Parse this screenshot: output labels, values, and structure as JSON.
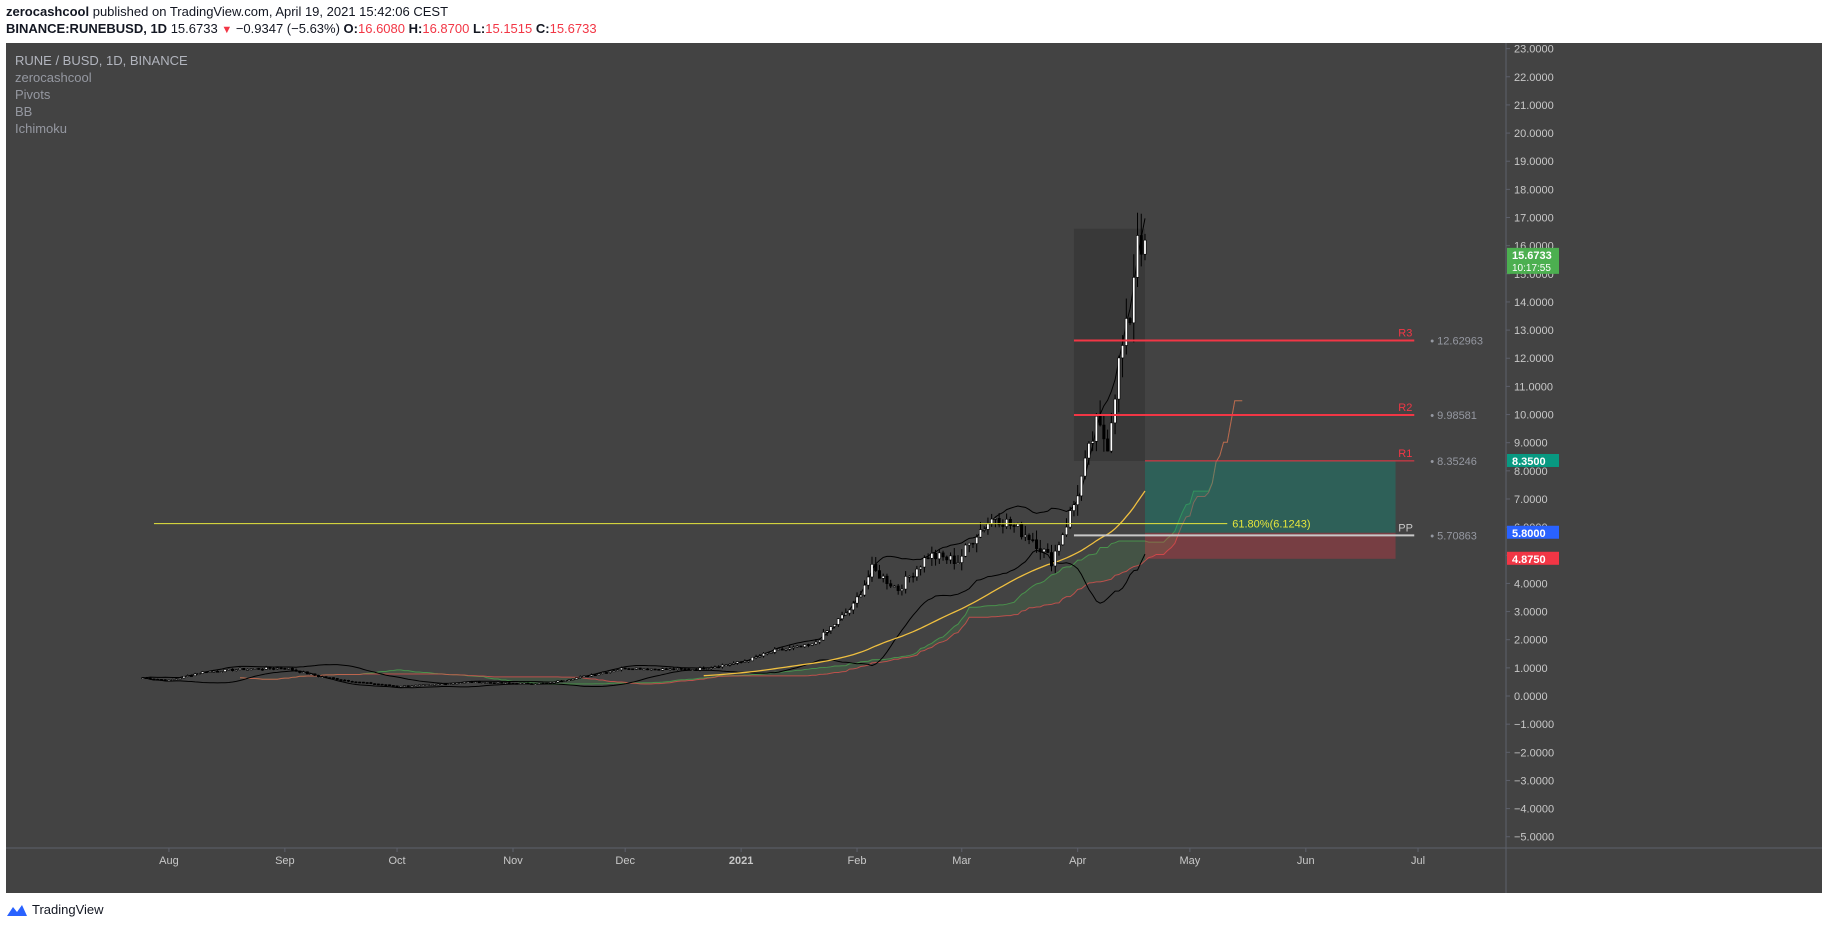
{
  "header": {
    "author": "zerocashcool",
    "published_text": "published on TradingView.com, April 19, 2021 15:42:06 CEST",
    "symbol_line": "BINANCE:RUNEBUSD, 1D",
    "price": "15.6733",
    "change": "−0.9347 (−5.63%)",
    "o_label": "O:",
    "o_value": "16.6080",
    "h_label": "H:",
    "h_value": "16.8700",
    "l_label": "L:",
    "l_value": "15.1515",
    "c_label": "C:",
    "c_value": "15.6733"
  },
  "legend": {
    "symbol": "RUNE / BUSD, 1D, BINANCE",
    "items": [
      "zerocashcool",
      "Pivots",
      "BB",
      "Ichimoku"
    ]
  },
  "footer": {
    "brand": "TradingView"
  },
  "colors": {
    "background": "#434343",
    "candle": "#000000",
    "pivot_red": "#f23645",
    "pivot_pp": "#c8c8c8",
    "fib": "#e6e63c",
    "cloud_green": "#4caf50",
    "cloud_red": "#ef5350",
    "badge_green": "#4caf50",
    "badge_teal": "#089981",
    "badge_blue": "#2962ff",
    "badge_red": "#f23645"
  },
  "chart_data": {
    "type": "candlestick",
    "title": "RUNE / BUSD, 1D, BINANCE",
    "x_ticks": [
      "Aug",
      "Sep",
      "Oct",
      "Nov",
      "Dec",
      "2021",
      "Feb",
      "Mar",
      "Apr",
      "May",
      "Jun",
      "Jul"
    ],
    "x_tick_dates": [
      "2020-08-01",
      "2020-09-01",
      "2020-10-01",
      "2020-11-01",
      "2020-12-01",
      "2021-01-01",
      "2021-02-01",
      "2021-03-01",
      "2021-04-01",
      "2021-05-01",
      "2021-06-01",
      "2021-07-01"
    ],
    "y_ticks": [
      "23.0000",
      "22.0000",
      "21.0000",
      "20.0000",
      "19.0000",
      "18.0000",
      "17.0000",
      "16.0000",
      "15.0000",
      "14.0000",
      "13.0000",
      "12.0000",
      "11.0000",
      "10.0000",
      "9.0000",
      "8.0000",
      "7.0000",
      "6.0000",
      "5.0000",
      "4.0000",
      "3.0000",
      "2.0000",
      "1.0000",
      "0.0000",
      "−1.0000",
      "−2.0000",
      "−3.0000",
      "−4.0000",
      "−5.0000"
    ],
    "y_tick_values": [
      23,
      22,
      21,
      20,
      19,
      18,
      17,
      16,
      15,
      14,
      13,
      12,
      11,
      10,
      9,
      8,
      7,
      6,
      5,
      4,
      3,
      2,
      1,
      0,
      -1,
      -2,
      -3,
      -4,
      -5
    ],
    "ylim": [
      -5.4,
      23.2
    ],
    "close_series": {
      "dates": [
        "2020-07-25",
        "2020-08-01",
        "2020-08-10",
        "2020-08-20",
        "2020-09-01",
        "2020-09-10",
        "2020-09-20",
        "2020-10-01",
        "2020-10-10",
        "2020-10-20",
        "2020-11-01",
        "2020-11-10",
        "2020-11-20",
        "2020-12-01",
        "2020-12-10",
        "2020-12-20",
        "2021-01-01",
        "2021-01-10",
        "2021-01-20",
        "2021-01-31",
        "2021-02-05",
        "2021-02-12",
        "2021-02-20",
        "2021-02-28",
        "2021-03-05",
        "2021-03-10",
        "2021-03-15",
        "2021-03-20",
        "2021-03-25",
        "2021-03-31",
        "2021-04-03",
        "2021-04-06",
        "2021-04-09",
        "2021-04-12",
        "2021-04-15",
        "2021-04-17",
        "2021-04-19"
      ],
      "close": [
        0.65,
        0.55,
        0.85,
        0.95,
        1.0,
        0.7,
        0.5,
        0.35,
        0.4,
        0.5,
        0.45,
        0.45,
        0.7,
        1.0,
        0.95,
        0.95,
        1.2,
        1.6,
        1.8,
        3.2,
        4.5,
        3.8,
        5.0,
        4.8,
        5.8,
        6.4,
        6.0,
        5.6,
        4.8,
        6.8,
        8.2,
        9.6,
        9.0,
        11.8,
        13.5,
        16.6,
        15.67
      ]
    },
    "pivots": [
      {
        "label": "R3",
        "value": 12.62963,
        "value_text": "12.62963"
      },
      {
        "label": "R2",
        "value": 9.98581,
        "value_text": "9.98581"
      },
      {
        "label": "R1",
        "value": 8.35246,
        "value_text": "8.35246"
      },
      {
        "label": "PP",
        "value": 5.70863,
        "value_text": "5.70863"
      }
    ],
    "fib_line": {
      "label": "61.80%(6.1243)",
      "value": 6.1243
    },
    "position": {
      "entry": 5.8,
      "target": 8.35,
      "stop": 4.875
    },
    "price_badges": [
      {
        "text": "15.6733",
        "sub": "10:17:55",
        "value": 15.6733
      },
      {
        "text": "8.3500",
        "value": 8.35
      },
      {
        "text": "5.8000",
        "value": 5.8
      },
      {
        "text": "4.8750",
        "value": 4.875
      }
    ]
  }
}
